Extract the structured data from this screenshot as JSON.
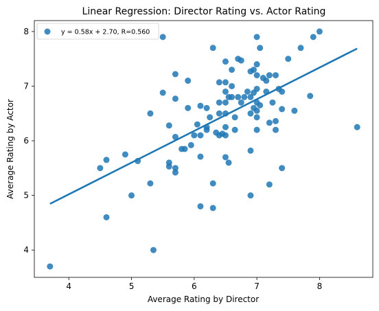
{
  "chart_data": {
    "type": "scatter",
    "title": "Linear Regression: Director Rating vs. Actor Rating",
    "xlabel": "Average Rating by Director",
    "ylabel": "Average Rating by Actor",
    "xlim": [
      3.45,
      8.85
    ],
    "ylim": [
      3.5,
      8.2
    ],
    "x_ticks": [
      4,
      5,
      6,
      7,
      8
    ],
    "y_ticks": [
      4,
      5,
      6,
      7,
      8
    ],
    "grid": false,
    "legend_position": "upper-left",
    "colors": {
      "points": "#1f77b4",
      "line": "#1f77b4"
    },
    "series": [
      {
        "name": "y = 0.58x + 2.70, R=0.560",
        "points": [
          [
            3.7,
            3.7
          ],
          [
            4.6,
            4.6
          ],
          [
            4.5,
            5.5
          ],
          [
            4.6,
            5.65
          ],
          [
            4.9,
            5.75
          ],
          [
            5.0,
            5.0
          ],
          [
            5.1,
            5.63
          ],
          [
            5.3,
            6.5
          ],
          [
            5.3,
            5.22
          ],
          [
            5.35,
            4.0
          ],
          [
            5.5,
            7.9
          ],
          [
            5.5,
            6.88
          ],
          [
            5.6,
            6.28
          ],
          [
            5.6,
            5.6
          ],
          [
            5.6,
            5.53
          ],
          [
            5.7,
            7.22
          ],
          [
            5.7,
            6.77
          ],
          [
            5.7,
            6.07
          ],
          [
            5.7,
            5.5
          ],
          [
            5.7,
            5.42
          ],
          [
            5.8,
            5.85
          ],
          [
            5.85,
            5.85
          ],
          [
            5.9,
            7.1
          ],
          [
            5.9,
            6.6
          ],
          [
            5.95,
            5.92
          ],
          [
            6.0,
            6.1
          ],
          [
            6.05,
            6.3
          ],
          [
            6.1,
            6.64
          ],
          [
            6.1,
            6.1
          ],
          [
            6.1,
            5.71
          ],
          [
            6.1,
            4.8
          ],
          [
            6.2,
            6.6
          ],
          [
            6.2,
            6.25
          ],
          [
            6.2,
            6.2
          ],
          [
            6.25,
            6.43
          ],
          [
            6.3,
            7.7
          ],
          [
            6.3,
            5.22
          ],
          [
            6.3,
            4.77
          ],
          [
            6.35,
            6.15
          ],
          [
            6.4,
            7.07
          ],
          [
            6.4,
            6.7
          ],
          [
            6.4,
            6.5
          ],
          [
            6.4,
            6.1
          ],
          [
            6.45,
            6.13
          ],
          [
            6.5,
            7.45
          ],
          [
            6.5,
            7.07
          ],
          [
            6.5,
            6.9
          ],
          [
            6.5,
            6.7
          ],
          [
            6.5,
            6.5
          ],
          [
            6.5,
            6.25
          ],
          [
            6.5,
            6.1
          ],
          [
            6.5,
            5.7
          ],
          [
            6.55,
            6.8
          ],
          [
            6.55,
            5.6
          ],
          [
            6.6,
            7.3
          ],
          [
            6.6,
            7.0
          ],
          [
            6.6,
            6.8
          ],
          [
            6.65,
            6.2
          ],
          [
            6.65,
            6.43
          ],
          [
            6.7,
            7.5
          ],
          [
            6.7,
            6.8
          ],
          [
            6.75,
            7.47
          ],
          [
            6.75,
            6.7
          ],
          [
            6.8,
            6.8
          ],
          [
            6.85,
            6.9
          ],
          [
            6.9,
            7.27
          ],
          [
            6.9,
            6.8
          ],
          [
            6.9,
            6.5
          ],
          [
            6.9,
            5.82
          ],
          [
            6.9,
            5.0
          ],
          [
            6.95,
            7.3
          ],
          [
            6.95,
            6.88
          ],
          [
            6.95,
            6.6
          ],
          [
            7.0,
            7.9
          ],
          [
            7.0,
            7.4
          ],
          [
            7.0,
            7.2
          ],
          [
            7.0,
            6.95
          ],
          [
            7.0,
            6.7
          ],
          [
            7.0,
            6.55
          ],
          [
            7.0,
            6.43
          ],
          [
            7.0,
            6.2
          ],
          [
            7.05,
            7.7
          ],
          [
            7.05,
            6.65
          ],
          [
            7.1,
            7.15
          ],
          [
            7.15,
            7.1
          ],
          [
            7.15,
            6.9
          ],
          [
            7.2,
            7.2
          ],
          [
            7.2,
            6.33
          ],
          [
            7.2,
            5.2
          ],
          [
            7.25,
            6.7
          ],
          [
            7.3,
            7.2
          ],
          [
            7.3,
            6.36
          ],
          [
            7.3,
            6.2
          ],
          [
            7.35,
            6.95
          ],
          [
            7.4,
            6.9
          ],
          [
            7.4,
            6.58
          ],
          [
            7.4,
            5.5
          ],
          [
            7.5,
            7.5
          ],
          [
            7.6,
            6.55
          ],
          [
            7.7,
            7.7
          ],
          [
            7.85,
            6.82
          ],
          [
            7.9,
            7.9
          ],
          [
            8.0,
            8.0
          ],
          [
            8.6,
            6.25
          ]
        ]
      }
    ],
    "fit_line": {
      "x": [
        3.7,
        8.6
      ],
      "y": [
        4.846,
        7.688
      ]
    }
  }
}
